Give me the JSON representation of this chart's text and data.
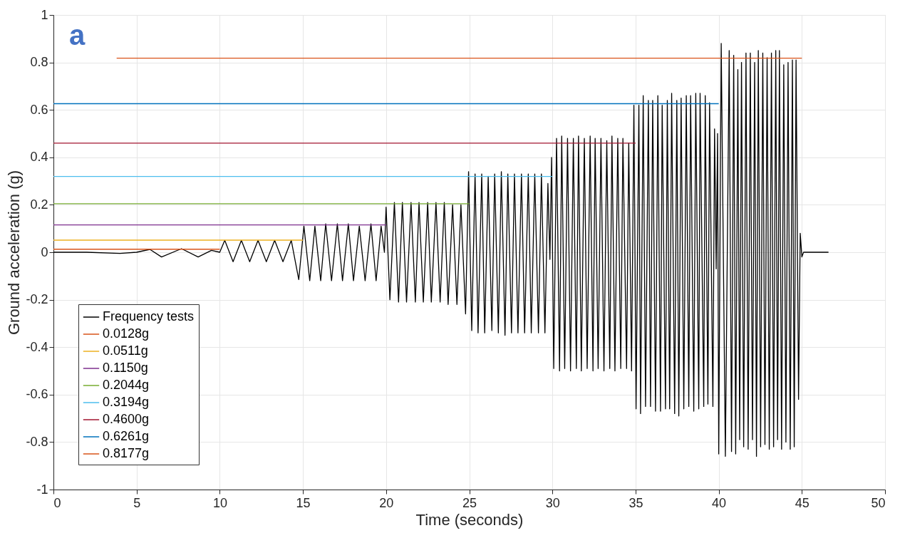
{
  "chart_data": {
    "type": "line",
    "xlabel": "Time (seconds)",
    "ylabel": "Ground acceleration (g)",
    "annotations": [
      "a"
    ],
    "xlim": [
      0,
      50
    ],
    "xticks": [
      0,
      5,
      10,
      15,
      20,
      25,
      30,
      35,
      40,
      45,
      50
    ],
    "ylim": [
      -1,
      1
    ],
    "yticks": [
      -1,
      -0.8,
      -0.6,
      -0.4,
      -0.2,
      0,
      0.2,
      0.4,
      0.6,
      0.8,
      1
    ],
    "grid": true,
    "legend": "bottom left",
    "series": [
      {
        "name": "Frequency tests",
        "color": "#000000",
        "x": [
          0,
          2,
          4,
          5,
          5.8,
          6.5,
          7.7,
          8.7,
          9.5,
          10.0,
          10.3,
          10.8,
          11.3,
          11.8,
          12.3,
          12.8,
          13.3,
          13.8,
          14.3,
          14.75,
          15.06,
          15.41,
          15.72,
          16.07,
          16.37,
          16.72,
          17.07,
          17.38,
          17.73,
          18.04,
          18.39,
          18.74,
          19.09,
          19.4,
          19.7,
          19.9,
          20.0,
          20.23,
          20.5,
          20.75,
          20.98,
          21.23,
          21.5,
          21.76,
          21.98,
          22.24,
          22.5,
          22.72,
          23.0,
          23.25,
          23.5,
          23.73,
          24.0,
          24.26,
          24.5,
          24.78,
          24.96,
          25.15,
          25.35,
          25.53,
          25.75,
          25.93,
          26.14,
          26.36,
          26.53,
          26.75,
          26.93,
          27.15,
          27.32,
          27.54,
          27.72,
          27.93,
          28.14,
          28.33,
          28.55,
          28.73,
          28.94,
          29.16,
          29.34,
          29.55,
          29.73,
          29.85,
          29.95,
          30.08,
          30.25,
          30.43,
          30.56,
          30.74,
          30.91,
          31.09,
          31.26,
          31.44,
          31.57,
          31.74,
          31.92,
          32.09,
          32.27,
          32.44,
          32.57,
          32.75,
          32.92,
          33.1,
          33.27,
          33.45,
          33.58,
          33.76,
          33.93,
          34.11,
          34.24,
          34.46,
          34.59,
          34.76,
          34.9,
          35.03,
          35.2,
          35.3,
          35.46,
          35.6,
          35.77,
          35.9,
          36.03,
          36.2,
          36.34,
          36.5,
          36.6,
          36.8,
          36.91,
          37.05,
          37.17,
          37.35,
          37.48,
          37.6,
          37.74,
          37.9,
          38.05,
          38.2,
          38.31,
          38.5,
          38.62,
          38.8,
          38.88,
          39.1,
          39.19,
          39.35,
          39.45,
          39.65,
          39.75,
          39.85,
          39.93,
          40.0,
          40.15,
          40.4,
          40.63,
          40.77,
          40.9,
          41.02,
          41.15,
          41.26,
          41.37,
          41.5,
          41.64,
          41.77,
          41.9,
          42.03,
          42.16,
          42.27,
          42.38,
          42.52,
          42.65,
          42.78,
          42.91,
          43.04,
          43.17,
          43.3,
          43.43,
          43.54,
          43.65,
          43.78,
          43.91,
          44.04,
          44.17,
          44.3,
          44.43,
          44.54,
          44.65,
          44.8,
          44.9,
          45.0,
          45.1,
          46.6
        ],
        "values": [
          0,
          0,
          -0.005,
          0,
          0.012,
          -0.02,
          0.015,
          -0.02,
          0.008,
          0.0,
          0.05,
          -0.04,
          0.05,
          -0.04,
          0.05,
          -0.04,
          0.05,
          -0.04,
          0.05,
          -0.115,
          0.11,
          -0.12,
          0.11,
          -0.12,
          0.12,
          -0.12,
          0.12,
          -0.12,
          0.12,
          -0.12,
          0.11,
          -0.12,
          0.12,
          -0.12,
          0.11,
          0.0,
          0.19,
          -0.2,
          0.21,
          -0.21,
          0.21,
          -0.21,
          0.21,
          -0.21,
          0.21,
          -0.21,
          0.21,
          -0.21,
          0.21,
          -0.21,
          0.21,
          -0.22,
          0.2,
          -0.22,
          0.2,
          -0.26,
          0.34,
          -0.33,
          0.33,
          -0.34,
          0.33,
          -0.34,
          0.32,
          -0.33,
          0.33,
          -0.34,
          0.34,
          -0.35,
          0.33,
          -0.34,
          0.33,
          -0.34,
          0.33,
          -0.34,
          0.33,
          -0.34,
          0.33,
          -0.34,
          0.33,
          -0.34,
          0.29,
          -0.03,
          0.4,
          -0.49,
          0.48,
          -0.5,
          0.49,
          -0.49,
          0.48,
          -0.5,
          0.48,
          -0.49,
          0.49,
          -0.5,
          0.48,
          -0.49,
          0.49,
          -0.5,
          0.48,
          -0.49,
          0.48,
          -0.5,
          0.47,
          -0.49,
          0.49,
          -0.5,
          0.48,
          -0.49,
          0.48,
          -0.49,
          0.46,
          -0.5,
          0.62,
          -0.66,
          0.62,
          -0.68,
          0.66,
          -0.65,
          0.64,
          -0.65,
          0.64,
          -0.67,
          0.66,
          -0.67,
          0.62,
          -0.66,
          0.64,
          -0.66,
          0.67,
          -0.68,
          0.64,
          -0.69,
          0.65,
          -0.66,
          0.66,
          -0.65,
          0.66,
          -0.67,
          0.67,
          -0.66,
          0.67,
          -0.65,
          0.66,
          -0.64,
          0.63,
          -0.65,
          0.52,
          -0.07,
          0.5,
          -0.85,
          0.88,
          -0.86,
          0.85,
          -0.84,
          0.83,
          -0.85,
          0.77,
          -0.79,
          0.8,
          -0.82,
          0.84,
          -0.83,
          0.84,
          -0.79,
          0.8,
          -0.86,
          0.85,
          -0.82,
          0.84,
          -0.81,
          0.82,
          -0.83,
          0.84,
          -0.82,
          0.85,
          -0.79,
          0.85,
          -0.83,
          0.79,
          -0.8,
          0.8,
          -0.83,
          0.81,
          -0.82,
          0.81,
          -0.62,
          0.08,
          -0.02,
          0,
          0
        ]
      },
      {
        "name": "0.0128g",
        "color": "#d95319",
        "x": [
          0,
          10
        ],
        "values": [
          0.0128,
          0.0128
        ]
      },
      {
        "name": "0.0511g",
        "color": "#edb120",
        "x": [
          0,
          15
        ],
        "values": [
          0.0511,
          0.0511
        ]
      },
      {
        "name": "0.1150g",
        "color": "#7e2f8e",
        "x": [
          0,
          20
        ],
        "values": [
          0.115,
          0.115
        ]
      },
      {
        "name": "0.2044g",
        "color": "#77ac30",
        "x": [
          0,
          25
        ],
        "values": [
          0.2044,
          0.2044
        ]
      },
      {
        "name": "0.3194g",
        "color": "#4dbeee",
        "x": [
          0,
          30
        ],
        "values": [
          0.3194,
          0.3194
        ]
      },
      {
        "name": "0.4600g",
        "color": "#a2142f",
        "x": [
          0,
          35
        ],
        "values": [
          0.46,
          0.46
        ]
      },
      {
        "name": "0.6261g",
        "color": "#0072bd",
        "x": [
          0,
          40
        ],
        "values": [
          0.6261,
          0.6261
        ]
      },
      {
        "name": "0.8177g",
        "color": "#d95319",
        "x": [
          3.8,
          45
        ],
        "values": [
          0.8177,
          0.8177
        ]
      }
    ]
  }
}
